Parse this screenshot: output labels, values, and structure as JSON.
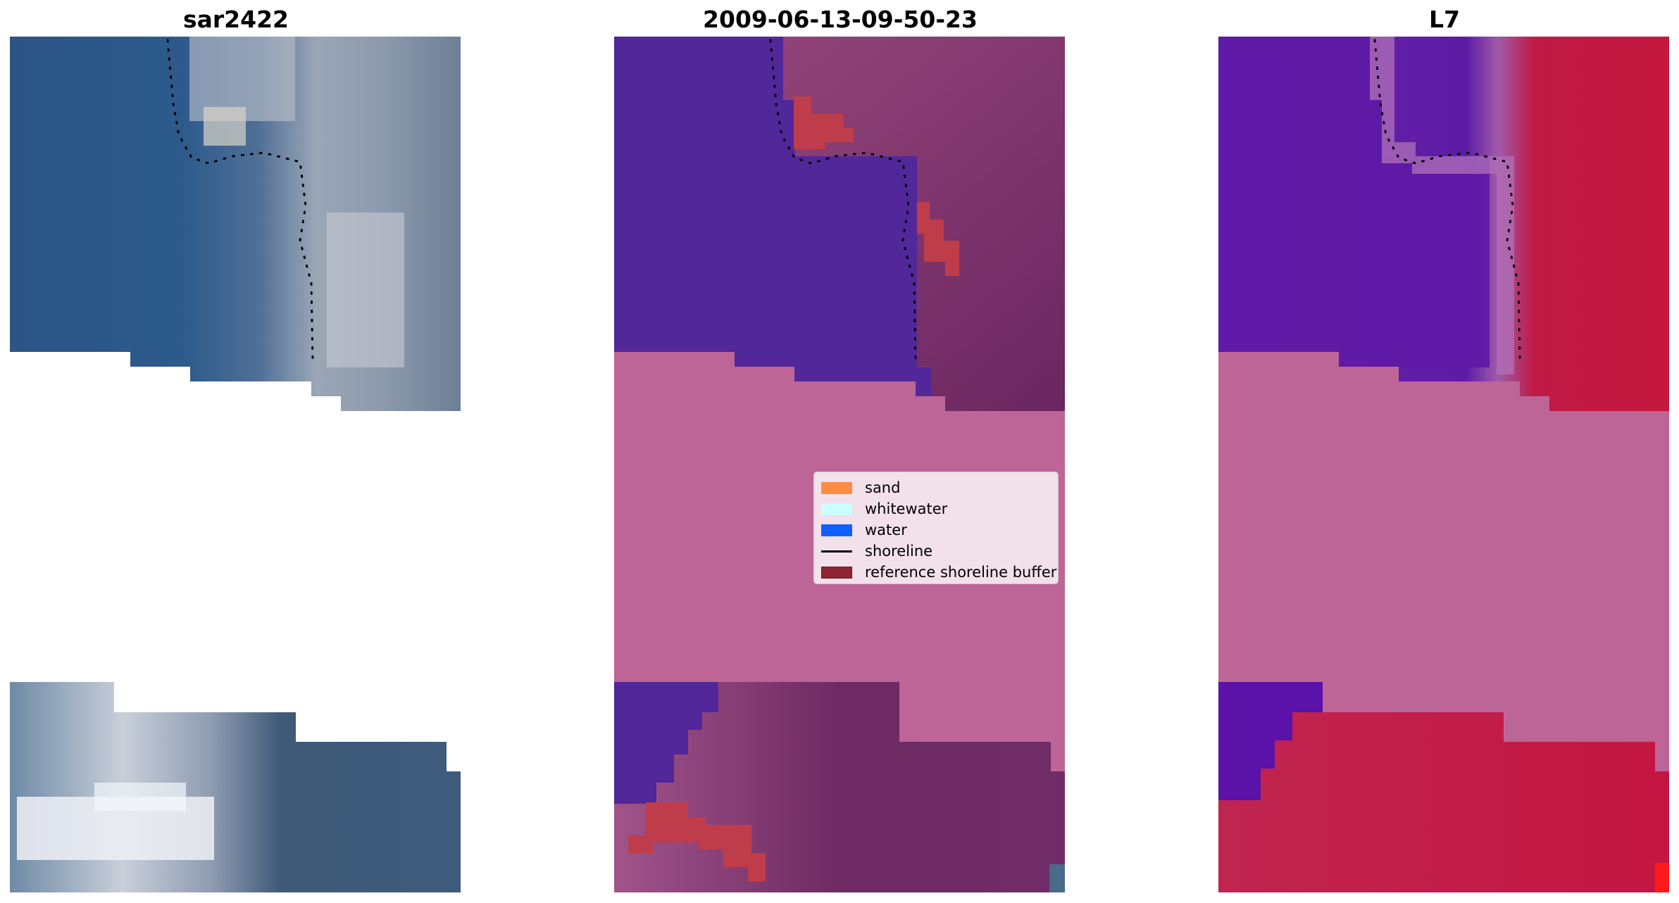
{
  "panels": [
    {
      "id": "rgb",
      "title": "sar2422"
    },
    {
      "id": "classified",
      "title": "2009-06-13-09-50-23"
    },
    {
      "id": "index",
      "title": "L7"
    }
  ],
  "legend": {
    "location": "center-right of middle panel",
    "items": [
      {
        "label": "sand",
        "color": "#ff8c45",
        "kind": "patch"
      },
      {
        "label": "whitewater",
        "color": "#c8ffff",
        "kind": "patch"
      },
      {
        "label": "water",
        "color": "#1060ff",
        "kind": "patch"
      },
      {
        "label": "shoreline",
        "color": "#000000",
        "kind": "line"
      },
      {
        "label": "reference shoreline buffer",
        "color": "#8b2630",
        "kind": "patch"
      }
    ]
  },
  "colors": {
    "nodata_mask": "#bd6597",
    "water_overlay": "#52279a",
    "buffer_overlay": "#bf3d4a",
    "rgb_water": "#2e5a8e",
    "rgb_land": "#8f9eb0",
    "rgb_whitewater": "#e8ecf2",
    "index_water": "#5a16a4",
    "index_land": "#c2143e",
    "shoreline": "#000000"
  },
  "icons": [
    "dotted-shoreline-line"
  ]
}
